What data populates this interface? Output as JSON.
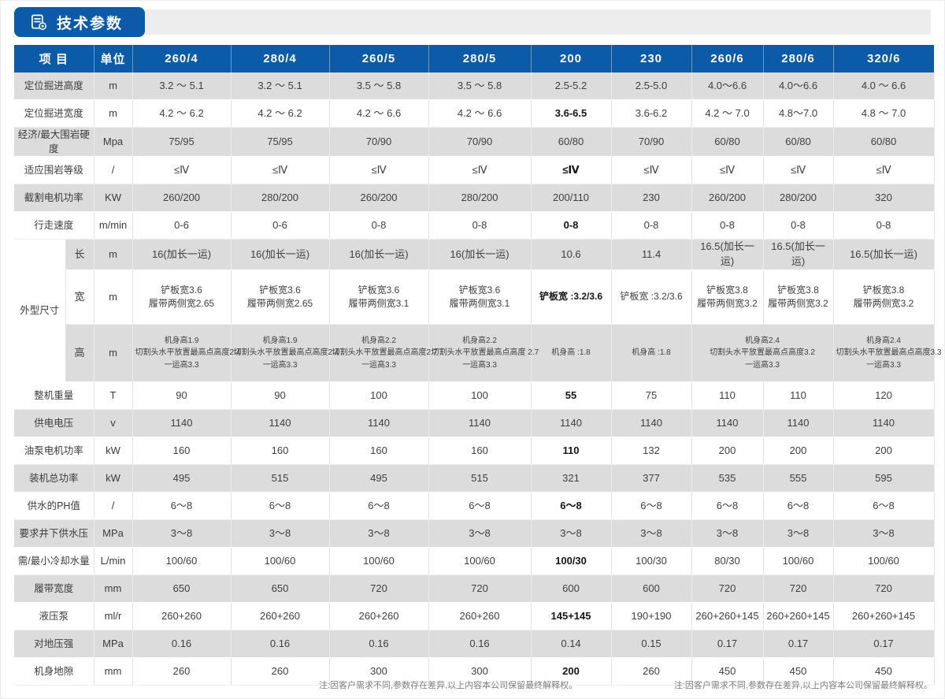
{
  "page": {
    "title": "技术参数",
    "note_left": "注:因客户需求不同,参数存在差异,以上内容本公司保留最终解释权。",
    "note_right": "注:因客户需求不同,参数存在差异,以上内容本公司保留最终解释权。"
  },
  "colors": {
    "header_blue": "#0b5ba8",
    "row_gray": "#dcdcdc",
    "strip_gray": "#ededed"
  },
  "table": {
    "item_header": "项 目",
    "unit_header": "单位",
    "models": [
      "260/4",
      "280/4",
      "260/5",
      "280/5",
      "200",
      "230",
      "260/6",
      "280/6",
      "320/6"
    ],
    "highlight_model": "200",
    "dim_rowspan": 3,
    "rows": [
      {
        "label": "定位掘进高度",
        "unit": "m",
        "values": [
          "3.2 ～ 5.1",
          "3.2 ～ 5.1",
          "3.5 ～ 5.8",
          "3.5 ～ 5.8",
          "2.5-5.2",
          "2.5-5.0",
          "4.0～6.6",
          "4.0～6.6",
          "4.0 ～ 6.6"
        ]
      },
      {
        "label": "定位掘进宽度",
        "unit": "m",
        "values": [
          "4.2 ～ 6.2",
          "4.2 ～ 6.2",
          "4.2 ～ 6.6",
          "4.2 ～ 6.6",
          "3.6-6.5",
          "3.6-6.2",
          "4.2 ～ 7.0",
          "4.8～7.0",
          "4.8 ～ 7.0"
        ]
      },
      {
        "label": "经济/最大围岩硬度",
        "unit": "Mpa",
        "values": [
          "75/95",
          "75/95",
          "70/90",
          "70/90",
          "60/80",
          "70/90",
          "60/80",
          "60/80",
          "60/80"
        ]
      },
      {
        "label": "适应围岩等级",
        "unit": "/",
        "values": [
          "≤Ⅳ",
          "≤Ⅳ",
          "≤Ⅳ",
          "≤Ⅳ",
          "≤Ⅳ",
          "≤Ⅳ",
          "≤Ⅳ",
          "≤Ⅳ",
          "≤Ⅳ"
        ]
      },
      {
        "label": "截割电机功率",
        "unit": "KW",
        "values": [
          "260/200",
          "280/200",
          "260/200",
          "280/200",
          "200/110",
          "230",
          "260/200",
          "280/200",
          "320"
        ]
      },
      {
        "label": "行走速度",
        "unit": "m/min",
        "values": [
          "0-6",
          "0-6",
          "0-8",
          "0-8",
          "0-8",
          "0-8",
          "0-8",
          "0-8",
          "0-8"
        ]
      },
      {
        "group": "外型尺寸",
        "sub": "长",
        "unit": "m",
        "values": [
          "16(加长一运)",
          "16(加长一运)",
          "16(加长一运)",
          "16(加长一运)",
          "10.6",
          "11.4",
          "16.5(加长一运)",
          "16.5(加长一运)",
          "16.5(加长一运)"
        ]
      },
      {
        "sub": "宽",
        "unit": "m",
        "values": [
          [
            "铲板宽3.6",
            "履带两侧宽2.65"
          ],
          [
            "铲板宽3.6",
            "履带两侧宽2.65"
          ],
          [
            "铲板宽3.6",
            "履带两侧宽3.1"
          ],
          [
            "铲板宽3.6",
            "履带两侧宽3.1"
          ],
          "铲板宽 :3.2/3.6",
          "铲板宽 :3.2/3.6",
          [
            "铲板宽3.8",
            "履带两侧宽3.2"
          ],
          [
            "铲板宽3.8",
            "履带两侧宽3.2"
          ],
          [
            "铲板宽3.8",
            "履带两侧宽3.2"
          ]
        ]
      },
      {
        "sub": "高",
        "unit": "m",
        "values": [
          [
            "机身高1.9",
            "切割头水平放置最高点高度2.4",
            "一运高3.3"
          ],
          [
            "机身高1.9",
            "切割头水平放置最高点高度2.4",
            "一运高3.3"
          ],
          [
            "机身高2.2",
            "切割头水平放置最高点高度2.7",
            "一运高3.3"
          ],
          [
            "机身高2.2",
            "切割头水平放置最高点高度 2.7",
            "一运高3.3"
          ],
          "机身高 :1.8",
          "机身高 :1.8",
          {
            "span": 2,
            "lines": [
              "机身高2.4",
              "切割头水平放置最高点高度3.2",
              "一运高3.3"
            ]
          },
          [
            "机身高2.4",
            "切割头水平放置最高点高度3.3",
            "一运高3.3"
          ]
        ]
      },
      {
        "label": "整机重量",
        "unit": "T",
        "values": [
          "90",
          "90",
          "100",
          "100",
          "55",
          "75",
          "110",
          "110",
          "120"
        ]
      },
      {
        "label": "供电电压",
        "unit": "v",
        "values": [
          "1140",
          "1140",
          "1140",
          "1140",
          "1140",
          "1140",
          "1140",
          "1140",
          "1140"
        ]
      },
      {
        "label": "油泵电机功率",
        "unit": "kW",
        "values": [
          "160",
          "160",
          "160",
          "160",
          "110",
          "132",
          "200",
          "200",
          "200"
        ]
      },
      {
        "label": "装机总功率",
        "unit": "kW",
        "values": [
          "495",
          "515",
          "495",
          "515",
          "321",
          "377",
          "535",
          "555",
          "595"
        ]
      },
      {
        "label": "供水的PH值",
        "unit": "/",
        "values": [
          "6～8",
          "6～8",
          "6～8",
          "6～8",
          "6～8",
          "6～8",
          "6～8",
          "6～8",
          "6～8"
        ]
      },
      {
        "label": "要求井下供水压",
        "unit": "MPa",
        "values": [
          "3～8",
          "3～8",
          "3～8",
          "3～8",
          "3～8",
          "3～8",
          "3～8",
          "3～8",
          "3～8"
        ]
      },
      {
        "label": "需/最小冷却水量",
        "unit": "L/min",
        "values": [
          "100/60",
          "100/60",
          "100/60",
          "100/60",
          "100/30",
          "100/30",
          "80/30",
          "100/60",
          "100/60"
        ]
      },
      {
        "label": "履带宽度",
        "unit": "mm",
        "values": [
          "650",
          "650",
          "720",
          "720",
          "600",
          "600",
          "720",
          "720",
          "720"
        ]
      },
      {
        "label": "液压泵",
        "unit": "ml/r",
        "values": [
          "260+260",
          "260+260",
          "260+260",
          "260+260",
          "145+145",
          "190+190",
          "260+260+145",
          "260+260+145",
          "260+260+145"
        ]
      },
      {
        "label": "对地压强",
        "unit": "MPa",
        "values": [
          "0.16",
          "0.16",
          "0.16",
          "0.16",
          "0.14",
          "0.15",
          "0.17",
          "0.17",
          "0.17"
        ]
      },
      {
        "label": "机身地隙",
        "unit": "mm",
        "values": [
          "260",
          "260",
          "300",
          "300",
          "200",
          "260",
          "450",
          "450",
          "450"
        ]
      }
    ]
  }
}
